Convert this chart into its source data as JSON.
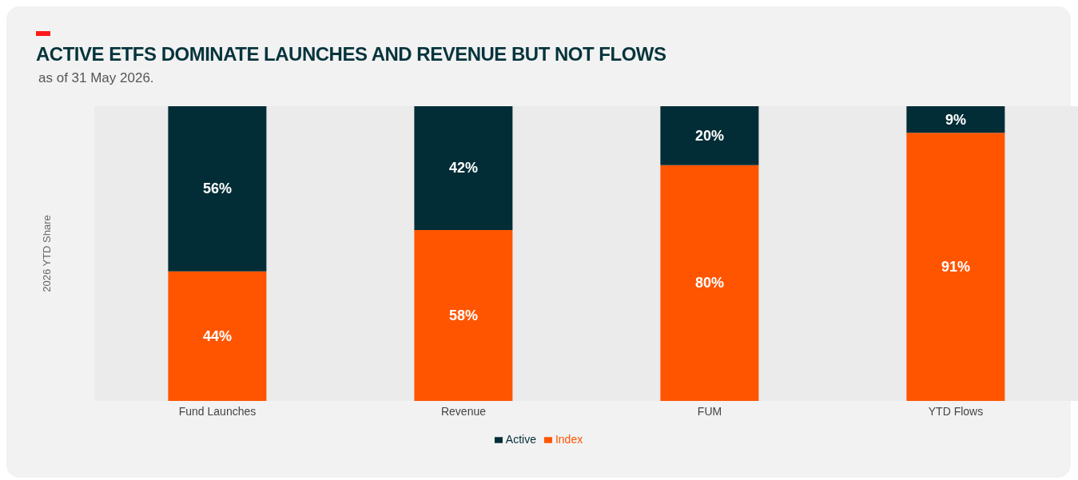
{
  "chart_data": {
    "type": "bar",
    "title": "ACTIVE ETFS DOMINATE LAUNCHES AND REVENUE BUT NOT FLOWS",
    "annotations": [
      "as of 31 May 2026."
    ],
    "ylabel": "2026 YTD Share",
    "categories": [
      "Fund Launches",
      "Revenue",
      "FUM",
      "YTD Flows"
    ],
    "stacked": true,
    "tick_labels": "x",
    "legend": "bottom",
    "series": [
      {
        "name": "Index",
        "color": "#ff5500",
        "values": [
          44,
          58,
          80,
          91
        ],
        "value_labels": [
          "44%",
          "58%",
          "80%",
          "91%"
        ]
      },
      {
        "name": "Active",
        "color": "#022d36",
        "values": [
          56,
          42,
          20,
          9
        ],
        "value_labels": [
          "56%",
          "42%",
          "20%",
          "9%"
        ]
      }
    ]
  }
}
